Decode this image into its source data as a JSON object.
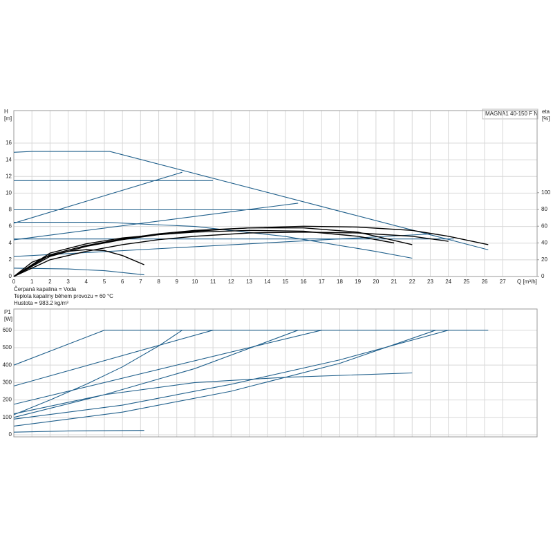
{
  "chart_data": [
    {
      "type": "line",
      "y_label": "H",
      "y_unit": "[m]",
      "y2_label": "eta",
      "y2_unit": "[%]",
      "x_label": "Q [m³/h]",
      "box_label": "MAGNA1 40-150 F N",
      "notes": [
        "Čerpaná kapalina = Voda",
        "Teplota kapaliny během provozu = 60 °C",
        "Hustota = 983.2 kg/m³"
      ],
      "xlim": [
        0,
        28.9
      ],
      "xticks": [
        0,
        1,
        2,
        3,
        4,
        5,
        6,
        7,
        8,
        9,
        10,
        11,
        12,
        13,
        14,
        15,
        16,
        17,
        18,
        19,
        20,
        21,
        22,
        23,
        24,
        25,
        26,
        27
      ],
      "ylim": [
        0,
        19.9
      ],
      "yticks": [
        0,
        2,
        4,
        6,
        8,
        10,
        12,
        14,
        16
      ],
      "y2lim": [
        0,
        198
      ],
      "y2ticks": [
        0,
        20,
        40,
        60,
        80,
        100
      ],
      "grid": true,
      "series": [
        {
          "color": "#1f5f8b",
          "x": [
            0,
            1,
            5.3,
            26.2
          ],
          "values": [
            14.9,
            15,
            15,
            3.2
          ]
        },
        {
          "color": "#1f5f8b",
          "x": [
            0,
            11
          ],
          "values": [
            11.5,
            11.5
          ]
        },
        {
          "color": "#1f5f8b",
          "x": [
            0,
            17
          ],
          "values": [
            8,
            8
          ]
        },
        {
          "color": "#1f5f8b",
          "x": [
            0,
            24.3
          ],
          "values": [
            4.5,
            4.5
          ]
        },
        {
          "color": "#1f5f8b",
          "x": [
            0,
            9.3
          ],
          "values": [
            6.4,
            12.5
          ]
        },
        {
          "color": "#1f5f8b",
          "x": [
            0,
            15.7
          ],
          "values": [
            4.4,
            8.8
          ]
        },
        {
          "color": "#1f5f8b",
          "x": [
            0,
            23
          ],
          "values": [
            2.4,
            5.1
          ]
        },
        {
          "color": "#1f5f8b",
          "x": [
            0,
            5,
            10,
            15,
            20,
            22
          ],
          "values": [
            6.5,
            6.5,
            6.0,
            4.8,
            3.0,
            2.2
          ]
        },
        {
          "color": "#1f5f8b",
          "x": [
            0,
            3,
            5,
            7.2
          ],
          "values": [
            1.0,
            0.9,
            0.7,
            0.2
          ]
        },
        {
          "color": "#000000",
          "axis": "y2",
          "x": [
            0,
            2,
            4,
            6,
            8,
            10,
            13,
            16,
            19,
            22,
            24,
            26.2
          ],
          "values": [
            0,
            24,
            36,
            44,
            50,
            54,
            58,
            60,
            59,
            55,
            48,
            38
          ]
        },
        {
          "color": "#000000",
          "axis": "y2",
          "x": [
            0,
            2,
            4,
            6,
            8,
            10,
            13,
            16,
            19,
            22
          ],
          "values": [
            0,
            26,
            37,
            45,
            51,
            55,
            58,
            58,
            53,
            38
          ]
        },
        {
          "color": "#000000",
          "axis": "y2",
          "x": [
            0,
            2,
            4,
            6,
            8,
            10,
            13,
            16,
            19,
            21
          ],
          "values": [
            0,
            28,
            39,
            46,
            50,
            53,
            55,
            54,
            48,
            40
          ]
        },
        {
          "color": "#000000",
          "axis": "y2",
          "x": [
            0,
            2,
            4,
            6,
            8,
            10,
            13,
            16,
            19,
            22,
            24
          ],
          "values": [
            0,
            20,
            30,
            38,
            44,
            48,
            52,
            53,
            52,
            48,
            42
          ]
        },
        {
          "color": "#000000",
          "axis": "y2",
          "x": [
            0,
            1,
            2,
            3,
            4,
            5,
            6,
            7.2
          ],
          "values": [
            0,
            17,
            25,
            30,
            32,
            31,
            25,
            14
          ]
        }
      ]
    },
    {
      "type": "line",
      "y_label": "P1",
      "y_unit": "[W]",
      "sharex": true,
      "xlim": [
        0,
        28.9
      ],
      "ylim": [
        -12,
        722
      ],
      "yticks": [
        0,
        100,
        200,
        300,
        400,
        500,
        600
      ],
      "grid": true,
      "series": [
        {
          "color": "#1f5f8b",
          "x": [
            0,
            5,
            26.2
          ],
          "values": [
            400,
            600,
            600
          ]
        },
        {
          "color": "#1f5f8b",
          "x": [
            0,
            11
          ],
          "values": [
            280,
            600
          ]
        },
        {
          "color": "#1f5f8b",
          "x": [
            0,
            2,
            4,
            6,
            8,
            9.3
          ],
          "values": [
            115,
            200,
            290,
            390,
            510,
            600
          ]
        },
        {
          "color": "#1f5f8b",
          "x": [
            0,
            17
          ],
          "values": [
            175,
            600
          ]
        },
        {
          "color": "#1f5f8b",
          "x": [
            0,
            5,
            10,
            15.7
          ],
          "values": [
            120,
            230,
            380,
            600
          ]
        },
        {
          "color": "#1f5f8b",
          "x": [
            0,
            6,
            12,
            18,
            24
          ],
          "values": [
            90,
            170,
            290,
            430,
            600
          ]
        },
        {
          "color": "#1f5f8b",
          "x": [
            0,
            6,
            12,
            18,
            23.3
          ],
          "values": [
            50,
            130,
            250,
            410,
            600
          ]
        },
        {
          "color": "#1f5f8b",
          "x": [
            0,
            5,
            10,
            15,
            22
          ],
          "values": [
            100,
            230,
            300,
            330,
            355
          ]
        },
        {
          "color": "#1f5f8b",
          "x": [
            0,
            3,
            7.2
          ],
          "values": [
            15,
            22,
            25
          ]
        }
      ]
    }
  ]
}
